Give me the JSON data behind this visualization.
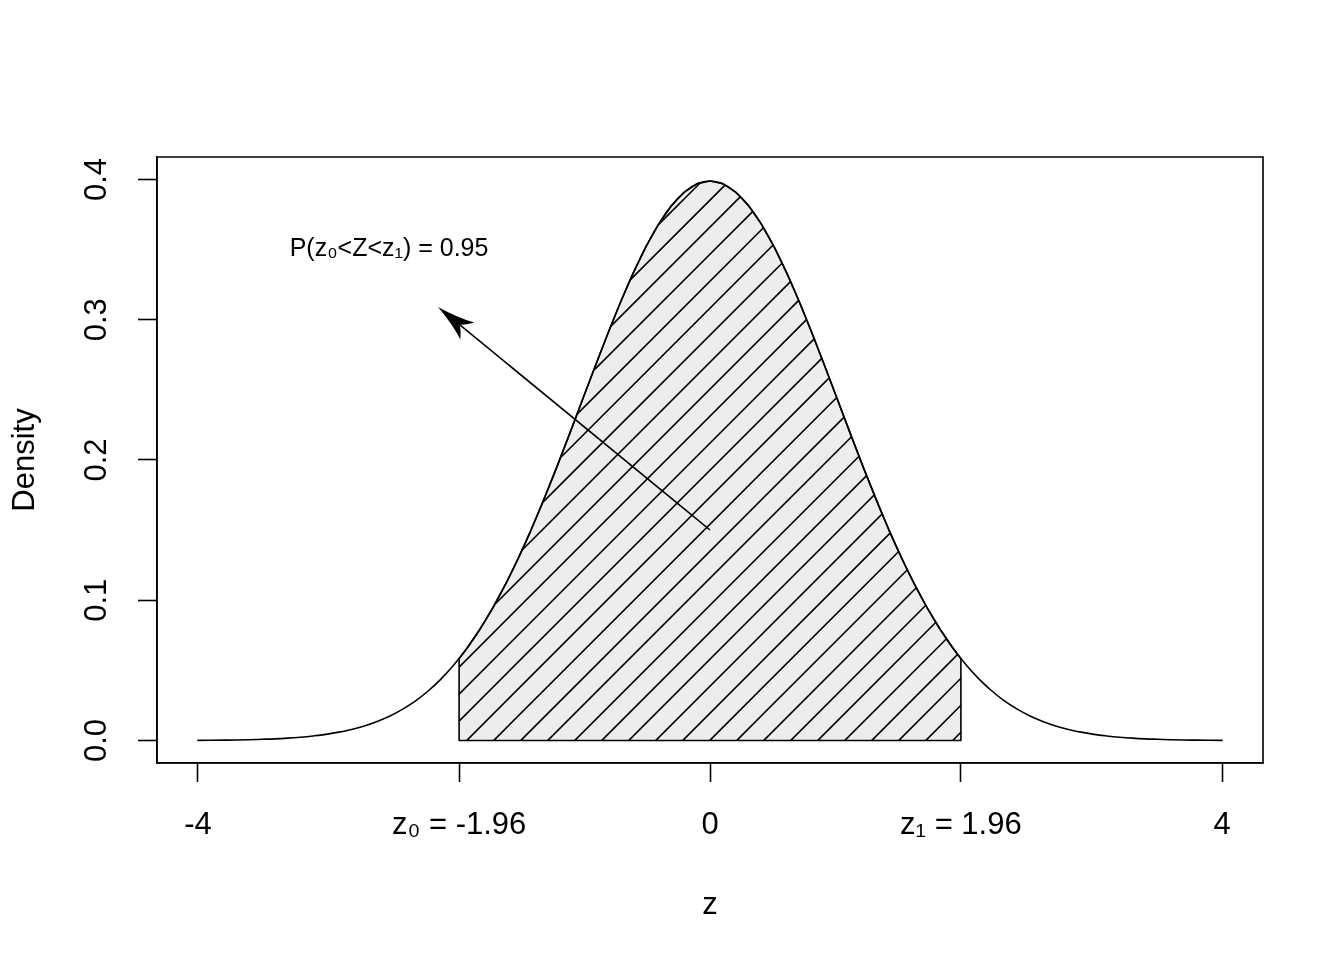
{
  "chart_data": {
    "type": "line",
    "xlabel": "z",
    "ylabel": "Density",
    "xlim": [
      -4.32,
      4.32
    ],
    "ylim": [
      -0.016,
      0.416
    ],
    "xticks": [
      -4,
      {
        "value": -1.96,
        "label": "z₀ = -1.96"
      },
      0,
      {
        "value": 1.96,
        "label": "z₁ = 1.96"
      },
      4
    ],
    "yticks": [
      {
        "value": 0,
        "label": "0.0"
      },
      0.1,
      0.2,
      0.3,
      0.4
    ],
    "grid": false,
    "legend": false,
    "marker": "none",
    "line_style": "solid",
    "series": [
      {
        "color": "#000000",
        "x": [
          -4,
          -3.9,
          -3.8,
          -3.7,
          -3.6,
          -3.5,
          -3.4,
          -3.3,
          -3.2,
          -3.1,
          -3,
          -2.9,
          -2.8,
          -2.7,
          -2.6,
          -2.5,
          -2.4,
          -2.3,
          -2.2,
          -2.1,
          -2,
          -1.9,
          -1.8,
          -1.7,
          -1.6,
          -1.5,
          -1.4,
          -1.3,
          -1.2,
          -1.1,
          -1,
          -0.9,
          -0.8,
          -0.7,
          -0.6,
          -0.5,
          -0.4,
          -0.3,
          -0.2,
          -0.1,
          0,
          0.1,
          0.2,
          0.3,
          0.4,
          0.5,
          0.6,
          0.7,
          0.8,
          0.9,
          1,
          1.1,
          1.2,
          1.3,
          1.4,
          1.5,
          1.6,
          1.7,
          1.8,
          1.9,
          2,
          2.1,
          2.2,
          2.3,
          2.4,
          2.5,
          2.6,
          2.7,
          2.8,
          2.9,
          3,
          3.1,
          3.2,
          3.3,
          3.4,
          3.5,
          3.6,
          3.7,
          3.8,
          3.9,
          4
        ],
        "values": [
          0.0001,
          0.0002,
          0.0003,
          0.0004,
          0.0006,
          0.0009,
          0.0012,
          0.0017,
          0.0024,
          0.0033,
          0.0044,
          0.006,
          0.0079,
          0.0104,
          0.0136,
          0.0175,
          0.0224,
          0.0283,
          0.0355,
          0.044,
          0.054,
          0.0656,
          0.079,
          0.094,
          0.1109,
          0.1295,
          0.1497,
          0.1714,
          0.1942,
          0.2179,
          0.242,
          0.2661,
          0.2897,
          0.3123,
          0.3332,
          0.3521,
          0.3683,
          0.3814,
          0.391,
          0.397,
          0.3989,
          0.397,
          0.391,
          0.3814,
          0.3683,
          0.3521,
          0.3332,
          0.3123,
          0.2897,
          0.2661,
          0.242,
          0.2179,
          0.1942,
          0.1714,
          0.1497,
          0.1295,
          0.1109,
          0.094,
          0.079,
          0.0656,
          0.054,
          0.044,
          0.0355,
          0.0283,
          0.0224,
          0.0175,
          0.0136,
          0.0104,
          0.0079,
          0.006,
          0.0044,
          0.0033,
          0.0024,
          0.0017,
          0.0012,
          0.0009,
          0.0006,
          0.0004,
          0.0003,
          0.0002,
          0.0001
        ]
      },
      {
        "type": "area",
        "color": "#000000",
        "x": [
          -1.96,
          -1.96,
          -1.9,
          -1.8,
          -1.7,
          -1.6,
          -1.5,
          -1.4,
          -1.3,
          -1.2,
          -1.1,
          -1,
          -0.9,
          -0.8,
          -0.7,
          -0.6,
          -0.5,
          -0.4,
          -0.3,
          -0.2,
          -0.1,
          0,
          0.1,
          0.2,
          0.3,
          0.4,
          0.5,
          0.6,
          0.7,
          0.8,
          0.9,
          1,
          1.1,
          1.2,
          1.3,
          1.4,
          1.5,
          1.6,
          1.7,
          1.8,
          1.9,
          1.96,
          1.96
        ],
        "values": [
          0,
          0.0584,
          0.0656,
          0.079,
          0.094,
          0.1109,
          0.1295,
          0.1497,
          0.1714,
          0.1942,
          0.2179,
          0.242,
          0.2661,
          0.2897,
          0.3123,
          0.3332,
          0.3521,
          0.3683,
          0.3814,
          0.391,
          0.397,
          0.3989,
          0.397,
          0.391,
          0.3814,
          0.3683,
          0.3521,
          0.3332,
          0.3123,
          0.2897,
          0.2661,
          0.242,
          0.2179,
          0.1942,
          0.1714,
          0.1497,
          0.1295,
          0.1109,
          0.094,
          0.079,
          0.0656,
          0.0584,
          0
        ]
      }
    ],
    "annotations": [
      "P(z₀<Z<z₁) = 0.95"
    ]
  }
}
